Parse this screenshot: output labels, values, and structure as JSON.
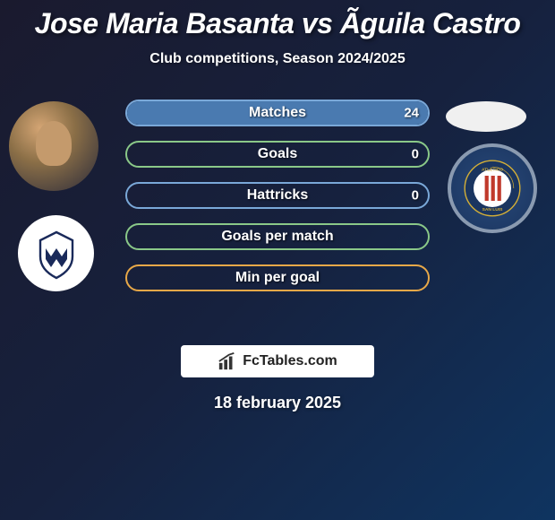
{
  "header": {
    "title": "Jose Maria Basanta vs Ãguila Castro",
    "subtitle": "Club competitions, Season 2024/2025"
  },
  "stats": [
    {
      "label": "Matches",
      "value": "24",
      "border_color": "#7aa8d8",
      "fill_color": "#4a7ab0",
      "fill_percent": 100
    },
    {
      "label": "Goals",
      "value": "0",
      "border_color": "#8ac888",
      "fill_color": "#5a9858",
      "fill_percent": 0
    },
    {
      "label": "Hattricks",
      "value": "0",
      "border_color": "#7aa8d8",
      "fill_color": "#4a7ab0",
      "fill_percent": 0
    },
    {
      "label": "Goals per match",
      "value": "",
      "border_color": "#8ac888",
      "fill_color": "#5a9858",
      "fill_percent": 0
    },
    {
      "label": "Min per goal",
      "value": "",
      "border_color": "#e8a848",
      "fill_color": "#c88828",
      "fill_percent": 0
    }
  ],
  "branding": {
    "text": "FcTables.com"
  },
  "date": "18 february 2025",
  "clubs": {
    "left_badge_primary": "#1a2a5a",
    "left_badge_bg": "#ffffff",
    "right_badge_primary": "#1a3560",
    "right_badge_ring": "#8a9ab0"
  }
}
